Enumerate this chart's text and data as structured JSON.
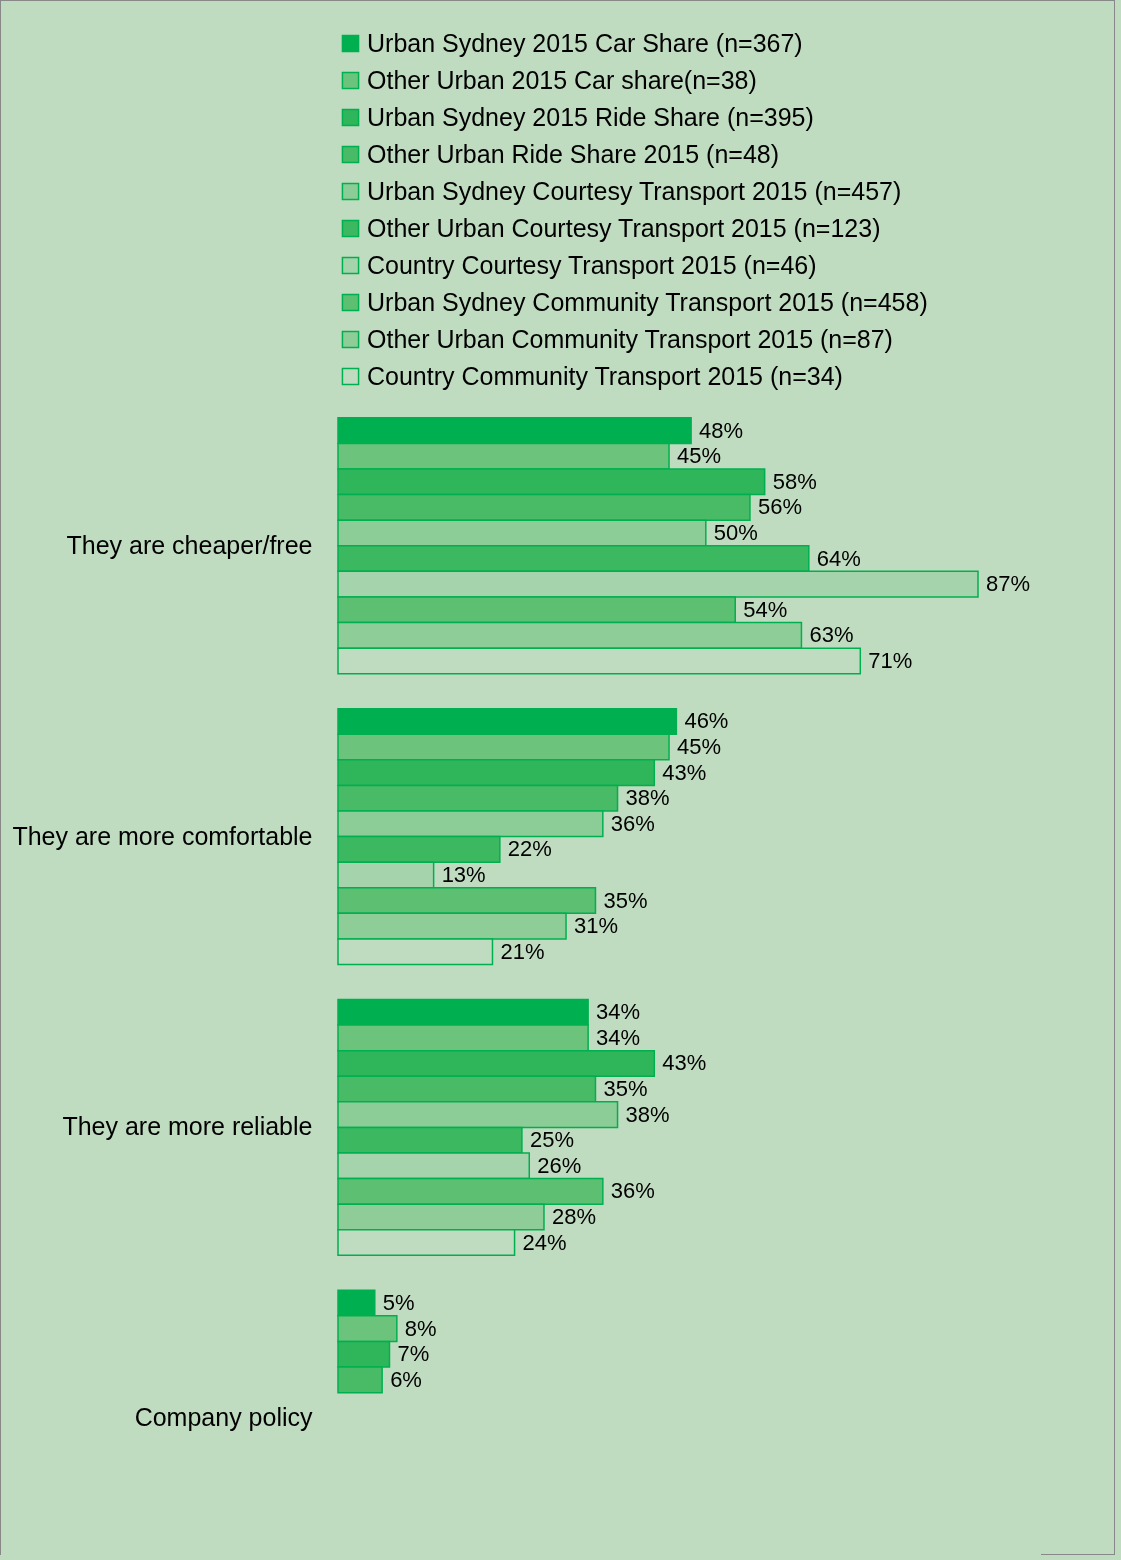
{
  "chart_data": {
    "type": "bar",
    "orientation": "horizontal",
    "legend": "top",
    "categories": [
      "They are cheaper/free",
      "They are more comfortable",
      "They are more reliable",
      "Company policy"
    ],
    "series": [
      {
        "name": "Urban Sydney 2015 Car Share (n=367)",
        "color": "#00b050",
        "values": [
          48,
          46,
          34,
          5
        ],
        "value_labels": [
          "48%",
          "46%",
          "34%",
          "5%"
        ]
      },
      {
        "name": "Other Urban 2015 Car share(n=38)",
        "color": "#6cc47c",
        "values": [
          45,
          45,
          34,
          8
        ],
        "value_labels": [
          "45%",
          "45%",
          "34%",
          "8%"
        ]
      },
      {
        "name": "Urban Sydney 2015 Ride Share (n=395)",
        "color": "#2fb55a",
        "values": [
          58,
          43,
          43,
          7
        ],
        "value_labels": [
          "58%",
          "43%",
          "43%",
          "7%"
        ]
      },
      {
        "name": "Other Urban Ride Share 2015 (n=48)",
        "color": "#49ba65",
        "values": [
          56,
          38,
          35,
          6
        ],
        "value_labels": [
          "56%",
          "38%",
          "35%",
          "6%"
        ]
      },
      {
        "name": "Urban Sydney Courtesy Transport 2015 (n=457)",
        "color": "#8ccc96",
        "values": [
          50,
          36,
          38,
          null
        ],
        "value_labels": [
          "50%",
          "36%",
          "38%",
          null
        ]
      },
      {
        "name": "Other Urban Courtesy Transport 2015 (n=123)",
        "color": "#3bb860",
        "values": [
          64,
          22,
          25,
          null
        ],
        "value_labels": [
          "64%",
          "22%",
          "25%",
          null
        ]
      },
      {
        "name": "Country Courtesy Transport 2015 (n=46)",
        "color": "#a5d3ab",
        "values": [
          87,
          13,
          26,
          null
        ],
        "value_labels": [
          "87%",
          "13%",
          "26%",
          null
        ]
      },
      {
        "name": "Urban Sydney Community Transport 2015 (n=458)",
        "color": "#5cbf72",
        "values": [
          54,
          35,
          36,
          null
        ],
        "value_labels": [
          "54%",
          "35%",
          "36%",
          null
        ]
      },
      {
        "name": "Other Urban Community Transport 2015 (n=87)",
        "color": "#8fcd98",
        "values": [
          63,
          31,
          28,
          null
        ],
        "value_labels": [
          "63%",
          "31%",
          "28%",
          null
        ]
      },
      {
        "name": "Country Community Transport 2015 (n=34)",
        "color": "#c0dcc0",
        "values": [
          71,
          21,
          24,
          null
        ],
        "value_labels": [
          "71%",
          "21%",
          "24%",
          null
        ]
      }
    ]
  }
}
